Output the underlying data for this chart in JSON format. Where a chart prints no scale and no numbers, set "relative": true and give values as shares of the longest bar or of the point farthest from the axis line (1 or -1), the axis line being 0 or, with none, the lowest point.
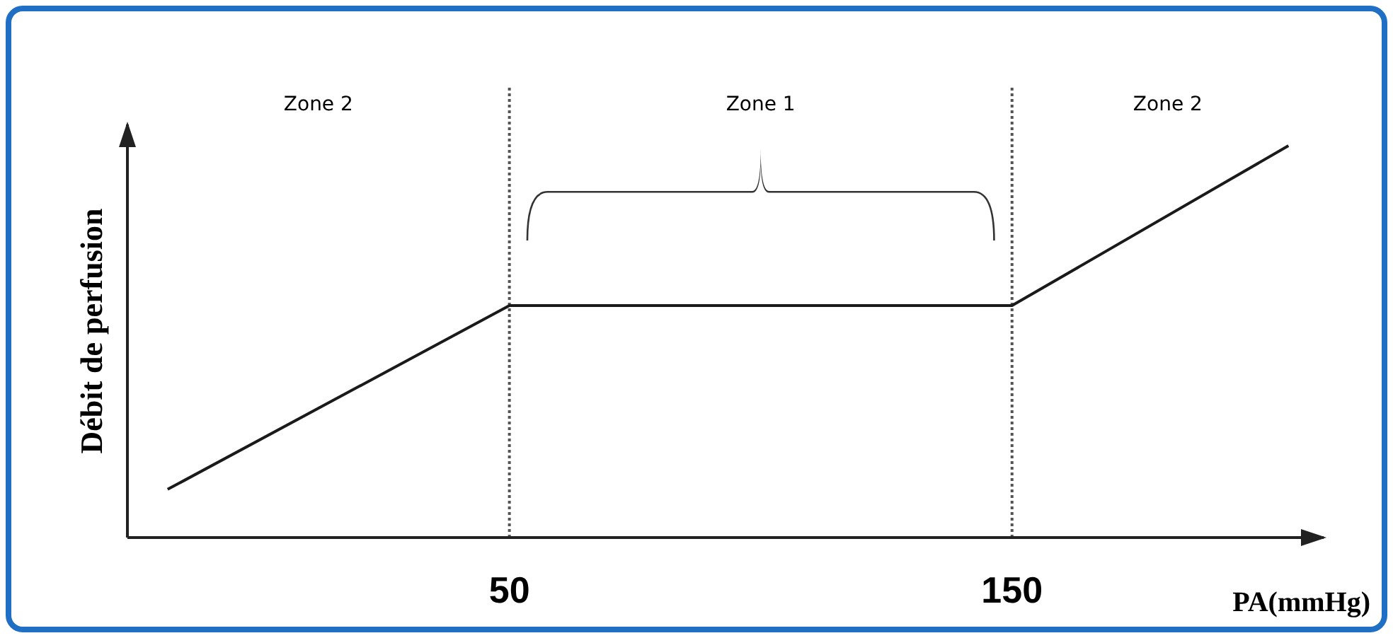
{
  "chart_data": {
    "type": "line",
    "xlabel": "PA(mmHg)",
    "ylabel": "Débit de perfusion",
    "x": [
      -18,
      50,
      150,
      205
    ],
    "series": [
      {
        "color": "#1a1a1a",
        "values": [
          0.123,
          0.592,
          0.592,
          1.0
        ]
      }
    ],
    "relative": true,
    "xlim": [
      -26,
      212
    ],
    "xticks": [
      50,
      150
    ],
    "tick_labels": "x",
    "grid": false,
    "marker": "none",
    "line_style": "solid",
    "ref_lines": [
      {
        "axis": "x",
        "value": 50,
        "line_style": "dotted",
        "color": "#555555"
      },
      {
        "axis": "x",
        "value": 150,
        "line_style": "dotted",
        "color": "#555555"
      }
    ],
    "annotations": [
      "Zone 2",
      "Zone 1",
      "Zone 2"
    ]
  }
}
